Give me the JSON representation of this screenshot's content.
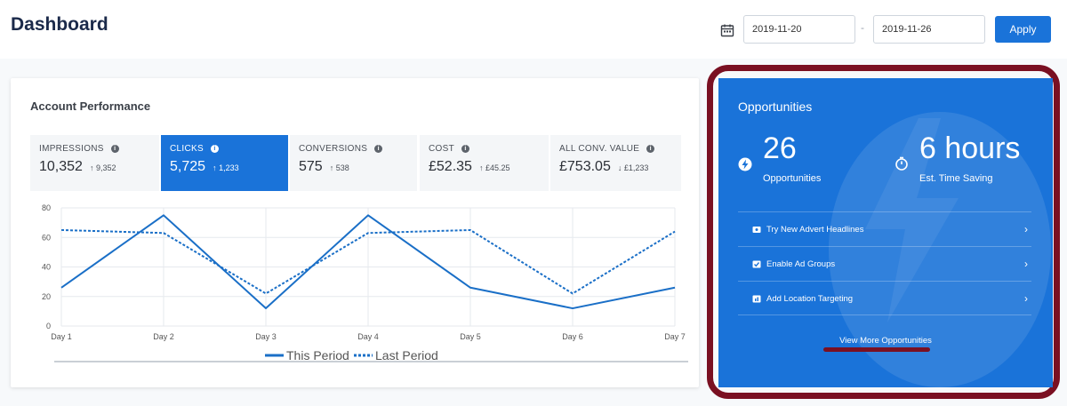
{
  "header": {
    "title": "Dashboard",
    "date_from": "2019-11-20",
    "date_separator": "-",
    "date_to": "2019-11-26",
    "apply_label": "Apply"
  },
  "performance": {
    "title": "Account Performance",
    "metrics": [
      {
        "label": "IMPRESSIONS",
        "value": "10,352",
        "prev": "9,352",
        "trend": "up",
        "active": false
      },
      {
        "label": "CLICKS",
        "value": "5,725",
        "prev": "1,233",
        "trend": "up",
        "active": true
      },
      {
        "label": "CONVERSIONS",
        "value": "575",
        "prev": "538",
        "trend": "up",
        "active": false
      },
      {
        "label": "COST",
        "value": "£52.35",
        "prev": "£45.25",
        "trend": "up",
        "active": false
      },
      {
        "label": "ALL CONV. VALUE",
        "value": "£753.05",
        "prev": "£1,233",
        "trend": "down",
        "active": false
      }
    ]
  },
  "chart_data": {
    "type": "line",
    "x": [
      "Day 1",
      "Day 2",
      "Day 3",
      "Day 4",
      "Day 5",
      "Day 6",
      "Day 7"
    ],
    "ylim": [
      0,
      80
    ],
    "yticks": [
      0,
      20,
      40,
      60,
      80
    ],
    "grid": true,
    "legend": "bottom",
    "series": [
      {
        "name": "This Period",
        "style": "solid",
        "values": [
          26,
          75,
          12,
          75,
          26,
          12,
          26
        ]
      },
      {
        "name": "Last Period",
        "style": "dotted",
        "values": [
          65,
          63,
          22,
          63,
          65,
          22,
          64
        ]
      }
    ],
    "colors": {
      "line": "#1a6fc7",
      "grid": "#e6e9ee",
      "axis": "#b9bfc7"
    }
  },
  "opportunities": {
    "title": "Opportunities",
    "count_value": "26",
    "count_label": "Opportunities",
    "time_value": "6 hours",
    "time_label": "Est. Time Saving",
    "items": [
      {
        "label": "Try New Advert Headlines",
        "icon": "ticket-icon"
      },
      {
        "label": "Enable Ad Groups",
        "icon": "checkbox-icon"
      },
      {
        "label": "Add Location Targeting",
        "icon": "location-icon"
      }
    ],
    "view_more": "View More Opportunities"
  },
  "colors": {
    "brand_blue": "#1a73d9",
    "highlight_maroon": "#7a1022",
    "title_navy": "#1b2a4a"
  }
}
